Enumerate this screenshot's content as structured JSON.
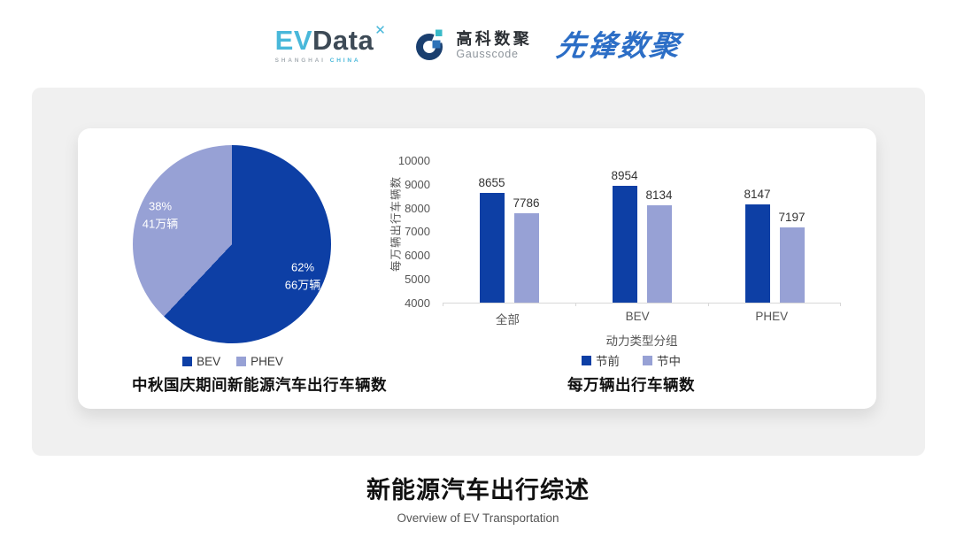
{
  "header": {
    "evdata": {
      "part1": "EV",
      "part2": "Data",
      "mark": "✕",
      "sub1": "SHANGHAI",
      "sub2": "CHINA"
    },
    "gausscode": {
      "cn": "高科数聚",
      "en": "Gausscode"
    },
    "xianfeng": "先锋数聚"
  },
  "colors": {
    "primary_blue": "#0d3fa5",
    "light_purple": "#97a1d5",
    "panel_gray": "#f0f0f0",
    "evdata_teal": "#49b8da",
    "evdata_dark": "#3d4a56",
    "gausscode_navy": "#1a3f6f",
    "brand_blue": "#2c6ec6"
  },
  "chart_data": [
    {
      "type": "pie",
      "title": "中秋国庆期间新能源汽车出行车辆数",
      "legend_position": "bottom",
      "slices": [
        {
          "name": "BEV",
          "percent": 62,
          "pct_label": "62%",
          "value_label": "66万辆",
          "color": "#0d3fa5"
        },
        {
          "name": "PHEV",
          "percent": 38,
          "pct_label": "38%",
          "value_label": "41万辆",
          "color": "#97a1d5"
        }
      ]
    },
    {
      "type": "bar",
      "title": "每万辆出行车辆数",
      "xlabel": "动力类型分组",
      "ylabel": "每万辆出行车辆数",
      "categories": [
        "全部",
        "BEV",
        "PHEV"
      ],
      "series": [
        {
          "name": "节前",
          "values": [
            8655,
            8954,
            8147
          ],
          "color": "#0d3fa5"
        },
        {
          "name": "节中",
          "values": [
            7786,
            8134,
            7197
          ],
          "color": "#97a1d5"
        }
      ],
      "ylim": [
        4000,
        10000
      ],
      "yticks": [
        4000,
        5000,
        6000,
        7000,
        8000,
        9000,
        10000
      ],
      "grid": false,
      "legend_position": "bottom"
    }
  ],
  "footer": {
    "title": "新能源汽车出行综述",
    "subtitle": "Overview of EV Transportation"
  }
}
